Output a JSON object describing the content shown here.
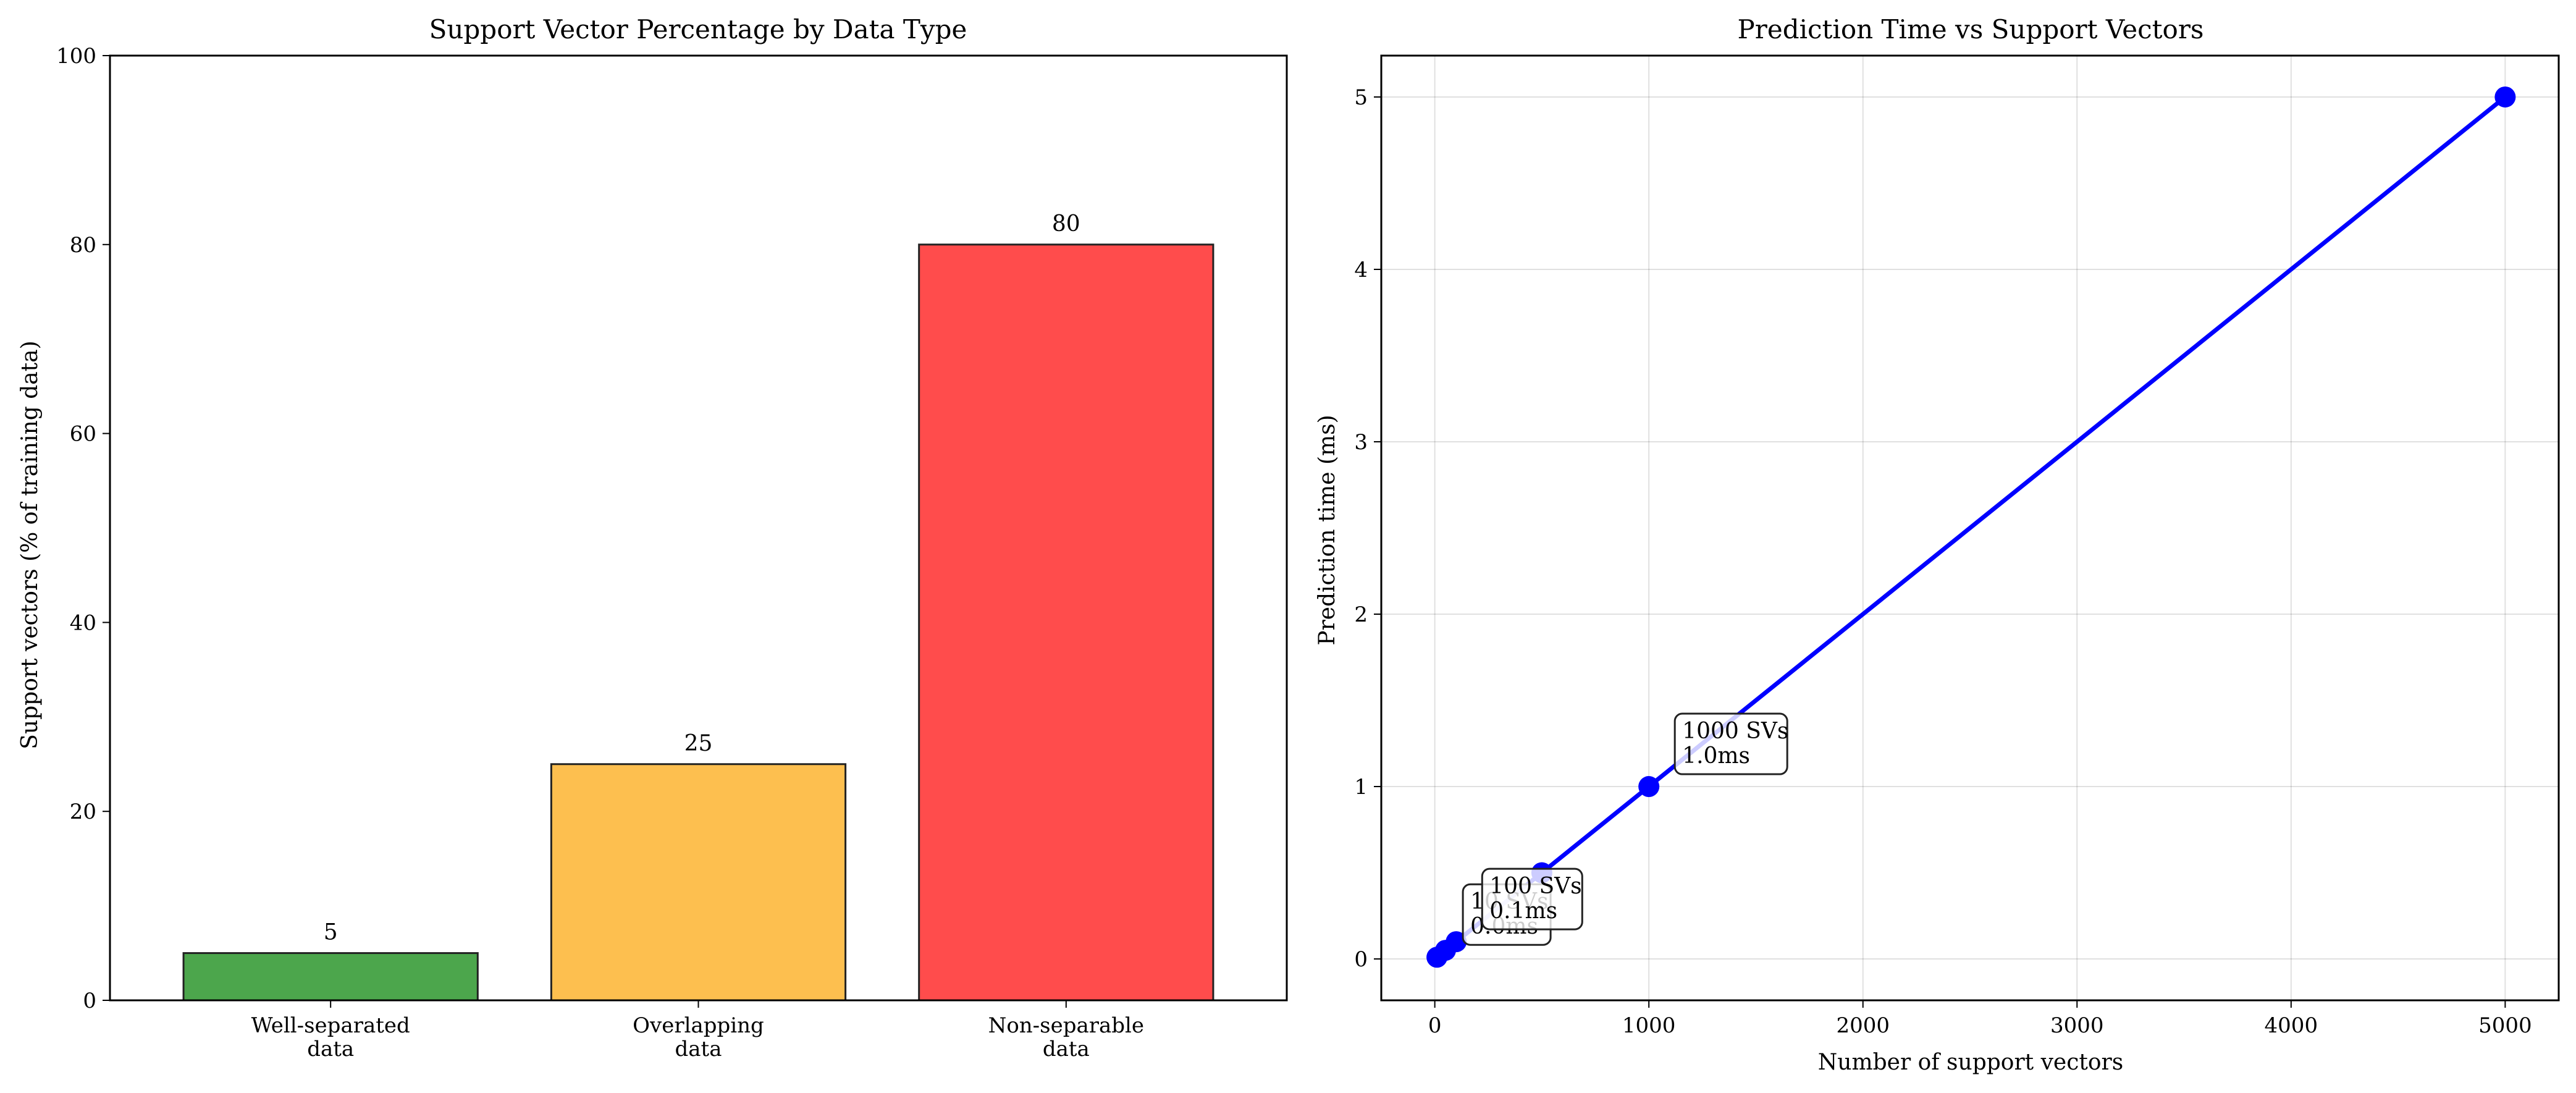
{
  "chart_data": [
    {
      "type": "bar",
      "title": "Support Vector Percentage by Data Type",
      "xlabel": "",
      "ylabel": "Support vectors (% of training data)",
      "categories": [
        [
          "Well-separated",
          "data"
        ],
        [
          "Overlapping",
          "data"
        ],
        [
          "Non-separable",
          "data"
        ]
      ],
      "values": [
        5,
        25,
        80
      ],
      "value_labels": [
        "5",
        "25",
        "80"
      ],
      "colors": [
        "#4ca64c",
        "#fdbf4f",
        "#ff4c4c"
      ],
      "ylim": [
        0,
        100
      ],
      "yticks": [
        0,
        20,
        40,
        60,
        80,
        100
      ],
      "grid": false
    },
    {
      "type": "line",
      "title": "Prediction Time vs Support Vectors",
      "xlabel": "Number of support vectors",
      "ylabel": "Prediction time (ms)",
      "x": [
        10,
        50,
        100,
        500,
        1000,
        5000
      ],
      "y": [
        0.01,
        0.05,
        0.1,
        0.5,
        1.0,
        5.0
      ],
      "color": "#0000ff",
      "xlim": [
        -250,
        5250
      ],
      "ylim": [
        -0.24,
        5.24
      ],
      "xticks": [
        0,
        1000,
        2000,
        3000,
        4000,
        5000
      ],
      "yticks": [
        0,
        1,
        2,
        3,
        4,
        5
      ],
      "grid": true,
      "annotations": [
        {
          "x": 10,
          "y": 0.01,
          "lines": [
            "10 SVs",
            "0.0ms"
          ]
        },
        {
          "x": 100,
          "y": 0.1,
          "lines": [
            "100 SVs",
            "0.1ms"
          ]
        },
        {
          "x": 1000,
          "y": 1.0,
          "lines": [
            "1000 SVs",
            "1.0ms"
          ]
        }
      ]
    }
  ]
}
